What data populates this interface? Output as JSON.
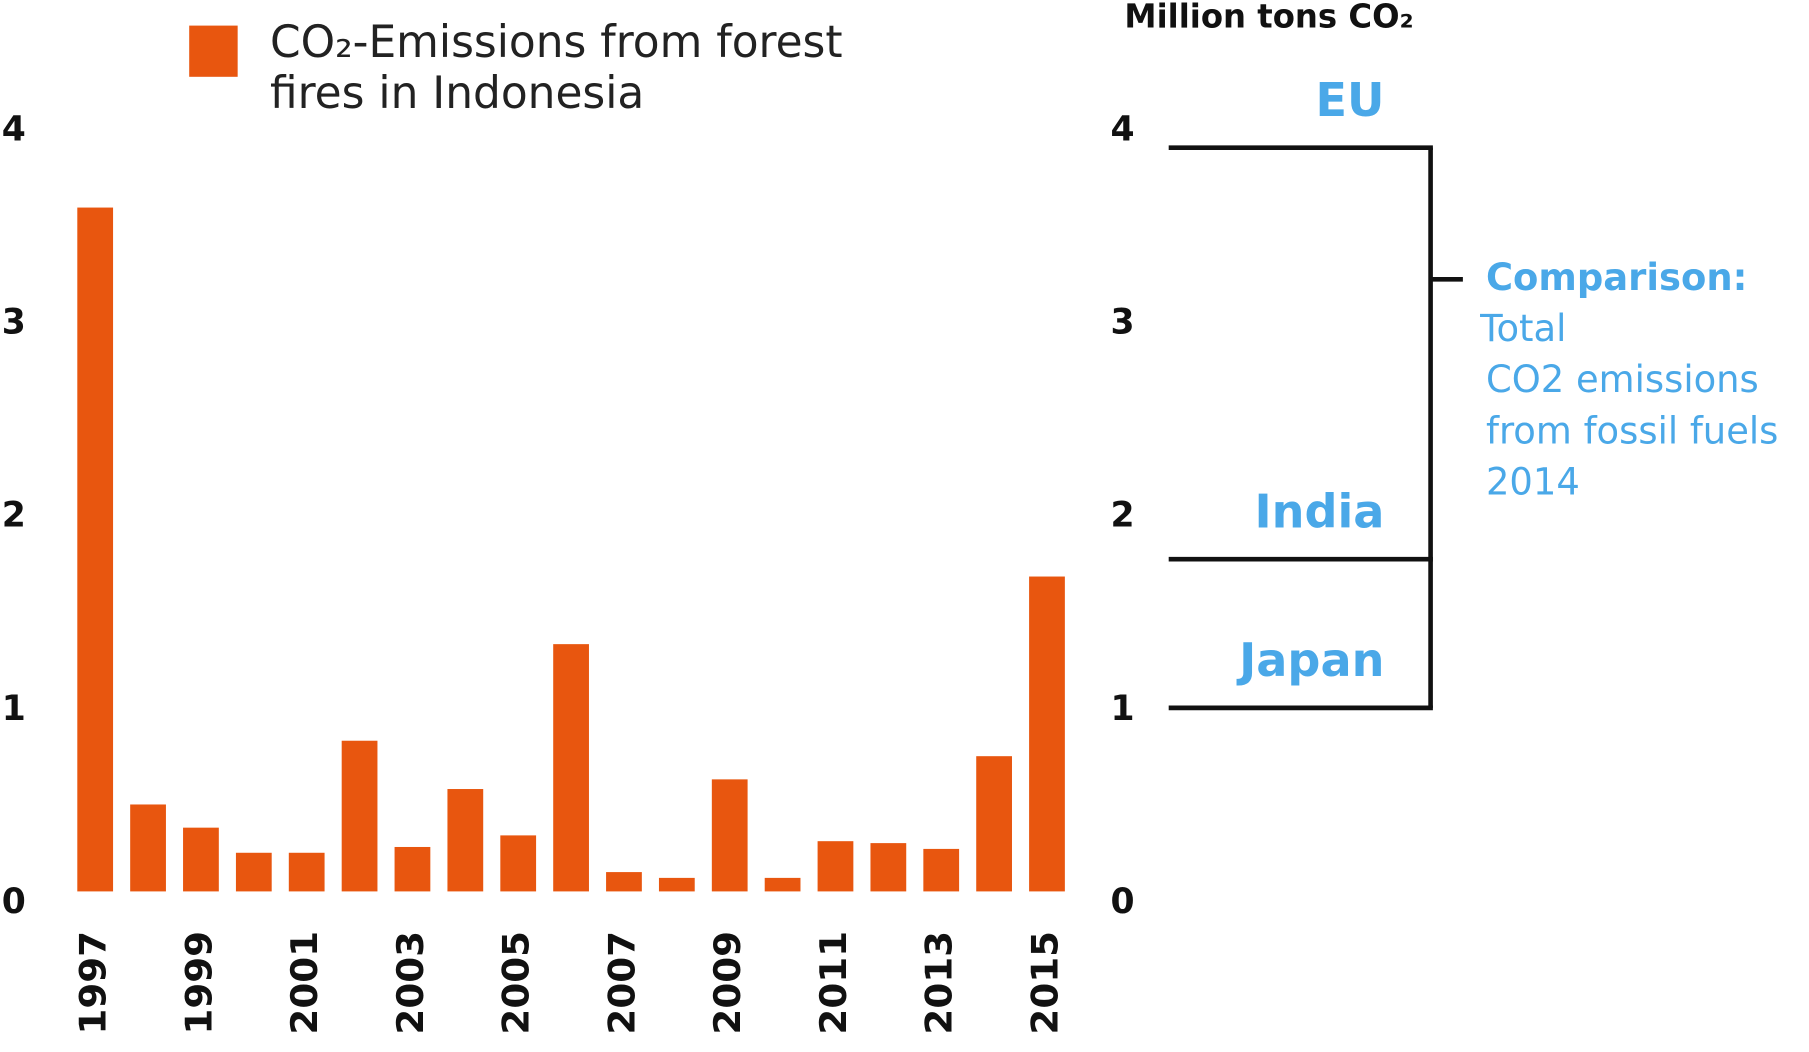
{
  "chart_data": {
    "type": "bar",
    "y_axis_title": "Million tons CO₂",
    "categories": [
      "1997",
      null,
      "1999",
      null,
      "2001",
      null,
      "2003",
      null,
      "2005",
      null,
      "2007",
      null,
      "2009",
      null,
      "2011",
      null,
      "2013",
      null,
      "2015"
    ],
    "series": [
      {
        "name": "CO₂-Emissions from forest fires in Indonesia",
        "color": "#e8560f",
        "values": [
          3.54,
          0.45,
          0.33,
          0.2,
          0.2,
          0.78,
          0.23,
          0.53,
          0.29,
          1.28,
          0.1,
          0.07,
          0.58,
          0.07,
          0.26,
          0.25,
          0.22,
          0.7,
          1.63
        ]
      }
    ],
    "ylim": [
      0,
      4
    ],
    "yticks": [
      0,
      1,
      2,
      3,
      4
    ],
    "comparison": {
      "title": "Comparison:",
      "text": [
        "Total",
        "CO2 emissions",
        "from fossil fuels",
        "2014"
      ],
      "color": "#4aa8e8",
      "items": [
        {
          "name": "EU",
          "value": 3.85
        },
        {
          "name": "India",
          "value": 1.72
        },
        {
          "name": "Japan",
          "value": 0.95
        }
      ]
    }
  }
}
